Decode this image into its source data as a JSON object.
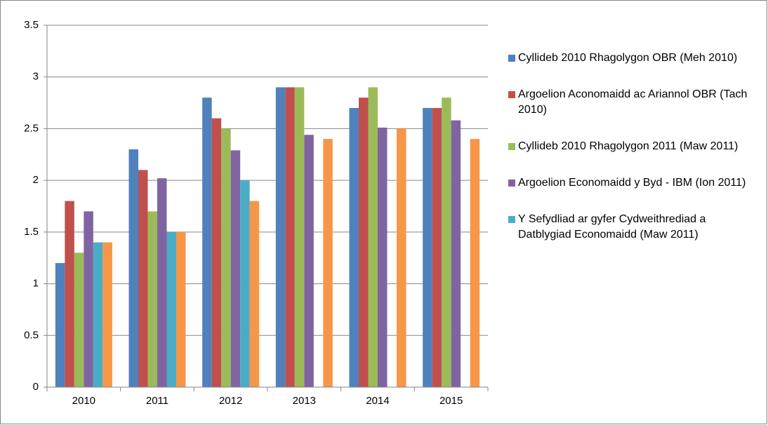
{
  "chart_data": {
    "type": "bar",
    "categories": [
      "2010",
      "2011",
      "2012",
      "2013",
      "2014",
      "2015"
    ],
    "series": [
      {
        "name": "Cyllideb 2010 Rhagolygon OBR (Meh 2010)",
        "color": "#4f81bd",
        "values": [
          1.2,
          2.3,
          2.8,
          2.9,
          2.7,
          2.7
        ]
      },
      {
        "name": "Argoelion Aconomaidd ac Ariannol OBR (Tach 2010)",
        "color": "#c0504d",
        "values": [
          1.8,
          2.1,
          2.6,
          2.9,
          2.8,
          2.7
        ]
      },
      {
        "name": "Cyllideb 2010 Rhagolygon 2011 (Maw 2011)",
        "color": "#9bbb59",
        "values": [
          1.3,
          1.7,
          2.5,
          2.9,
          2.9,
          2.8
        ]
      },
      {
        "name": "Argoelion Economaidd y Byd - IBM (Ion 2011)",
        "color": "#8064a2",
        "values": [
          1.7,
          2.02,
          2.29,
          2.44,
          2.51,
          2.58
        ]
      },
      {
        "name": "Y Sefydliad ar gyfer Cydweithrediad a Datblygiad Economaidd (Maw 2011)",
        "color": "#4bacc6",
        "values": [
          1.4,
          1.5,
          2.0,
          null,
          null,
          null
        ]
      },
      {
        "color": "#f79646",
        "values": [
          1.4,
          1.5,
          1.8,
          2.4,
          2.5,
          2.4
        ]
      }
    ],
    "ylim": [
      0,
      3.5
    ],
    "yticks": [
      0,
      0.5,
      1,
      1.5,
      2,
      2.5,
      3,
      3.5
    ],
    "grid": true,
    "legend": "right"
  }
}
